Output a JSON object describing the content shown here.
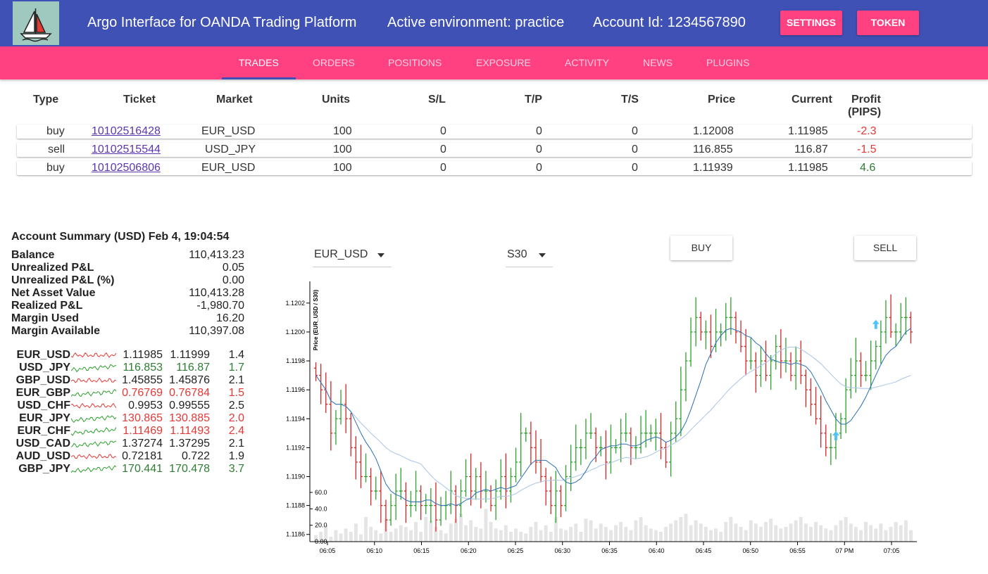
{
  "header": {
    "title": "Argo Interface for OANDA Trading Platform",
    "environment": "Active environment: practice",
    "account": "Account Id: 1234567890",
    "settings_label": "SETTINGS",
    "token_label": "TOKEN",
    "logo_icon": "sailboat-icon"
  },
  "tabs": [
    {
      "label": "TRADES",
      "active": true
    },
    {
      "label": "ORDERS"
    },
    {
      "label": "POSITIONS"
    },
    {
      "label": "EXPOSURE"
    },
    {
      "label": "ACTIVITY"
    },
    {
      "label": "NEWS"
    },
    {
      "label": "PLUGINS"
    }
  ],
  "trades": {
    "headers": {
      "type": "Type",
      "ticket": "Ticket",
      "market": "Market",
      "units": "Units",
      "sl": "S/L",
      "tp": "T/P",
      "ts": "T/S",
      "price": "Price",
      "current": "Current",
      "profit1": "Profit",
      "profit2": "(PIPS)"
    },
    "rows": [
      {
        "type": "buy",
        "ticket": "10102516428",
        "market": "EUR_USD",
        "units": "100",
        "sl": "0",
        "tp": "0",
        "ts": "0",
        "price": "1.12008",
        "current": "1.11985",
        "profit": "-2.3"
      },
      {
        "type": "sell",
        "ticket": "10102515544",
        "market": "USD_JPY",
        "units": "100",
        "sl": "0",
        "tp": "0",
        "ts": "0",
        "price": "116.855",
        "current": "116.87",
        "profit": "-1.5"
      },
      {
        "type": "buy",
        "ticket": "10102506806",
        "market": "EUR_USD",
        "units": "100",
        "sl": "0",
        "tp": "0",
        "ts": "0",
        "price": "1.11939",
        "current": "1.11985",
        "profit": "4.6"
      }
    ]
  },
  "summary": {
    "title": "Account Summary (USD) Feb 4, 19:04:54",
    "rows": [
      {
        "label": "Balance",
        "value": "110,413.23"
      },
      {
        "label": "Unrealized P&L",
        "value": "0.05"
      },
      {
        "label": "Unrealized P&L (%)",
        "value": "0.00"
      },
      {
        "label": "Net Asset Value",
        "value": "110,413.28"
      },
      {
        "label": "Realized P&L",
        "value": "-1,980.70"
      },
      {
        "label": "Margin Used",
        "value": "16.20"
      },
      {
        "label": "Margin Available",
        "value": "110,397.08"
      }
    ]
  },
  "quotes": [
    {
      "name": "EUR_USD",
      "bid": "1.11985",
      "ask": "1.11999",
      "spread": "1.4",
      "status": "neutral",
      "spark": "red"
    },
    {
      "name": "USD_JPY",
      "bid": "116.853",
      "ask": "116.87",
      "spread": "1.7",
      "status": "green",
      "spark": "green"
    },
    {
      "name": "GBP_USD",
      "bid": "1.45855",
      "ask": "1.45876",
      "spread": "2.1",
      "status": "neutral",
      "spark": "red"
    },
    {
      "name": "EUR_GBP",
      "bid": "0.76769",
      "ask": "0.76784",
      "spread": "1.5",
      "status": "red",
      "spark": "green"
    },
    {
      "name": "USD_CHF",
      "bid": "0.9953",
      "ask": "0.99555",
      "spread": "2.5",
      "status": "neutral",
      "spark": "red"
    },
    {
      "name": "EUR_JPY",
      "bid": "130.865",
      "ask": "130.885",
      "spread": "2.0",
      "status": "red",
      "spark": "green"
    },
    {
      "name": "EUR_CHF",
      "bid": "1.11469",
      "ask": "1.11493",
      "spread": "2.4",
      "status": "red",
      "spark": "green"
    },
    {
      "name": "USD_CAD",
      "bid": "1.37274",
      "ask": "1.37295",
      "spread": "2.1",
      "status": "neutral",
      "spark": "green"
    },
    {
      "name": "AUD_USD",
      "bid": "0.72181",
      "ask": "0.722",
      "spread": "1.9",
      "status": "neutral",
      "spark": "red"
    },
    {
      "name": "GBP_JPY",
      "bid": "170.441",
      "ask": "170.478",
      "spread": "3.7",
      "status": "green",
      "spark": "green"
    }
  ],
  "controls": {
    "instrument": "EUR_USD",
    "granularity": "S30",
    "buy_label": "BUY",
    "sell_label": "SELL"
  },
  "chart_data": {
    "type": "candlestick",
    "ylabel": "Price (EUR_USD / S30)",
    "y_ticks": [
      "1.1186",
      "1.1188",
      "1.1190",
      "1.1192",
      "1.1194",
      "1.1196",
      "1.1198",
      "1.1200",
      "1.1202"
    ],
    "ylim": [
      1.11855,
      1.12035
    ],
    "volume_ticks": [
      "0.00",
      "20.0",
      "40.0",
      "60.0"
    ],
    "volume_ylim": [
      0,
      60
    ],
    "x_ticks": [
      "06:05",
      "06:10",
      "06:15",
      "06:20",
      "06:25",
      "06:30",
      "06:35",
      "06:40",
      "06:45",
      "06:50",
      "06:55",
      "07 PM",
      "07:05"
    ],
    "colors": {
      "up": "#2ca02c",
      "down": "#d62728",
      "ma_fast": "#2a6fb5",
      "ma_slow": "#a9c4e8",
      "volume": "#e5e5e5",
      "marker": "#4fc3f7"
    },
    "close": [
      1.1197,
      1.1196,
      1.1195,
      1.1193,
      1.1194,
      1.1195,
      1.1194,
      1.1192,
      1.1191,
      1.119,
      1.119,
      1.1189,
      1.1189,
      1.1188,
      1.1187,
      1.1188,
      1.1189,
      1.1189,
      1.1188,
      1.1188,
      1.1189,
      1.1188,
      1.1188,
      1.1188,
      1.1187,
      1.1188,
      1.1188,
      1.1189,
      1.1188,
      1.1189,
      1.119,
      1.1189,
      1.119,
      1.1189,
      1.1189,
      1.1188,
      1.1189,
      1.119,
      1.1189,
      1.119,
      1.1191,
      1.1193,
      1.1193,
      1.1192,
      1.1191,
      1.119,
      1.1189,
      1.1188,
      1.1189,
      1.1188,
      1.119,
      1.1191,
      1.1192,
      1.1192,
      1.1193,
      1.1193,
      1.1192,
      1.1192,
      1.1191,
      1.1192,
      1.1192,
      1.1193,
      1.1193,
      1.1192,
      1.1192,
      1.1193,
      1.1193,
      1.1193,
      1.1193,
      1.1192,
      1.1191,
      1.1193,
      1.1194,
      1.1196,
      1.1198,
      1.12,
      1.1201,
      1.12,
      1.12,
      1.1199,
      1.12,
      1.12,
      1.1201,
      1.1201,
      1.12,
      1.1199,
      1.1198,
      1.1198,
      1.1197,
      1.1198,
      1.1197,
      1.1198,
      1.1199,
      1.1198,
      1.1198,
      1.1197,
      1.1198,
      1.1197,
      1.1196,
      1.1195,
      1.1194,
      1.1193,
      1.1192,
      1.1192,
      1.1193,
      1.1194,
      1.1196,
      1.1197,
      1.1198,
      1.1197,
      1.1197,
      1.1198,
      1.1199,
      1.12,
      1.1201,
      1.12,
      1.12,
      1.1201,
      1.1201,
      1.12
    ],
    "volume": [
      8,
      12,
      20,
      6,
      14,
      10,
      16,
      12,
      22,
      9,
      30,
      18,
      14,
      10,
      28,
      12,
      16,
      20,
      18,
      14,
      24,
      12,
      30,
      26,
      18,
      14,
      10,
      22,
      28,
      34,
      20,
      26,
      18,
      16,
      40,
      24,
      16,
      14,
      20,
      12,
      16,
      12,
      10,
      18,
      24,
      14,
      20,
      12,
      30,
      16,
      14,
      18,
      22,
      12,
      28,
      26,
      16,
      22,
      18,
      14,
      20,
      24,
      18,
      14,
      26,
      30,
      20,
      16,
      14,
      12,
      18,
      22,
      26,
      30,
      34,
      20,
      26,
      22,
      18,
      14,
      16,
      12,
      24,
      30,
      22,
      18,
      14,
      26,
      22,
      18,
      24,
      28,
      20,
      16,
      18,
      22,
      26,
      30,
      22,
      18,
      24,
      20,
      16,
      14,
      20,
      26,
      30,
      22,
      18,
      14,
      24,
      20,
      16,
      22,
      14,
      18,
      24,
      20,
      26,
      14
    ],
    "markers": [
      {
        "index": 104,
        "price": 1.11928
      },
      {
        "index": 112,
        "price": 1.12005
      }
    ]
  }
}
